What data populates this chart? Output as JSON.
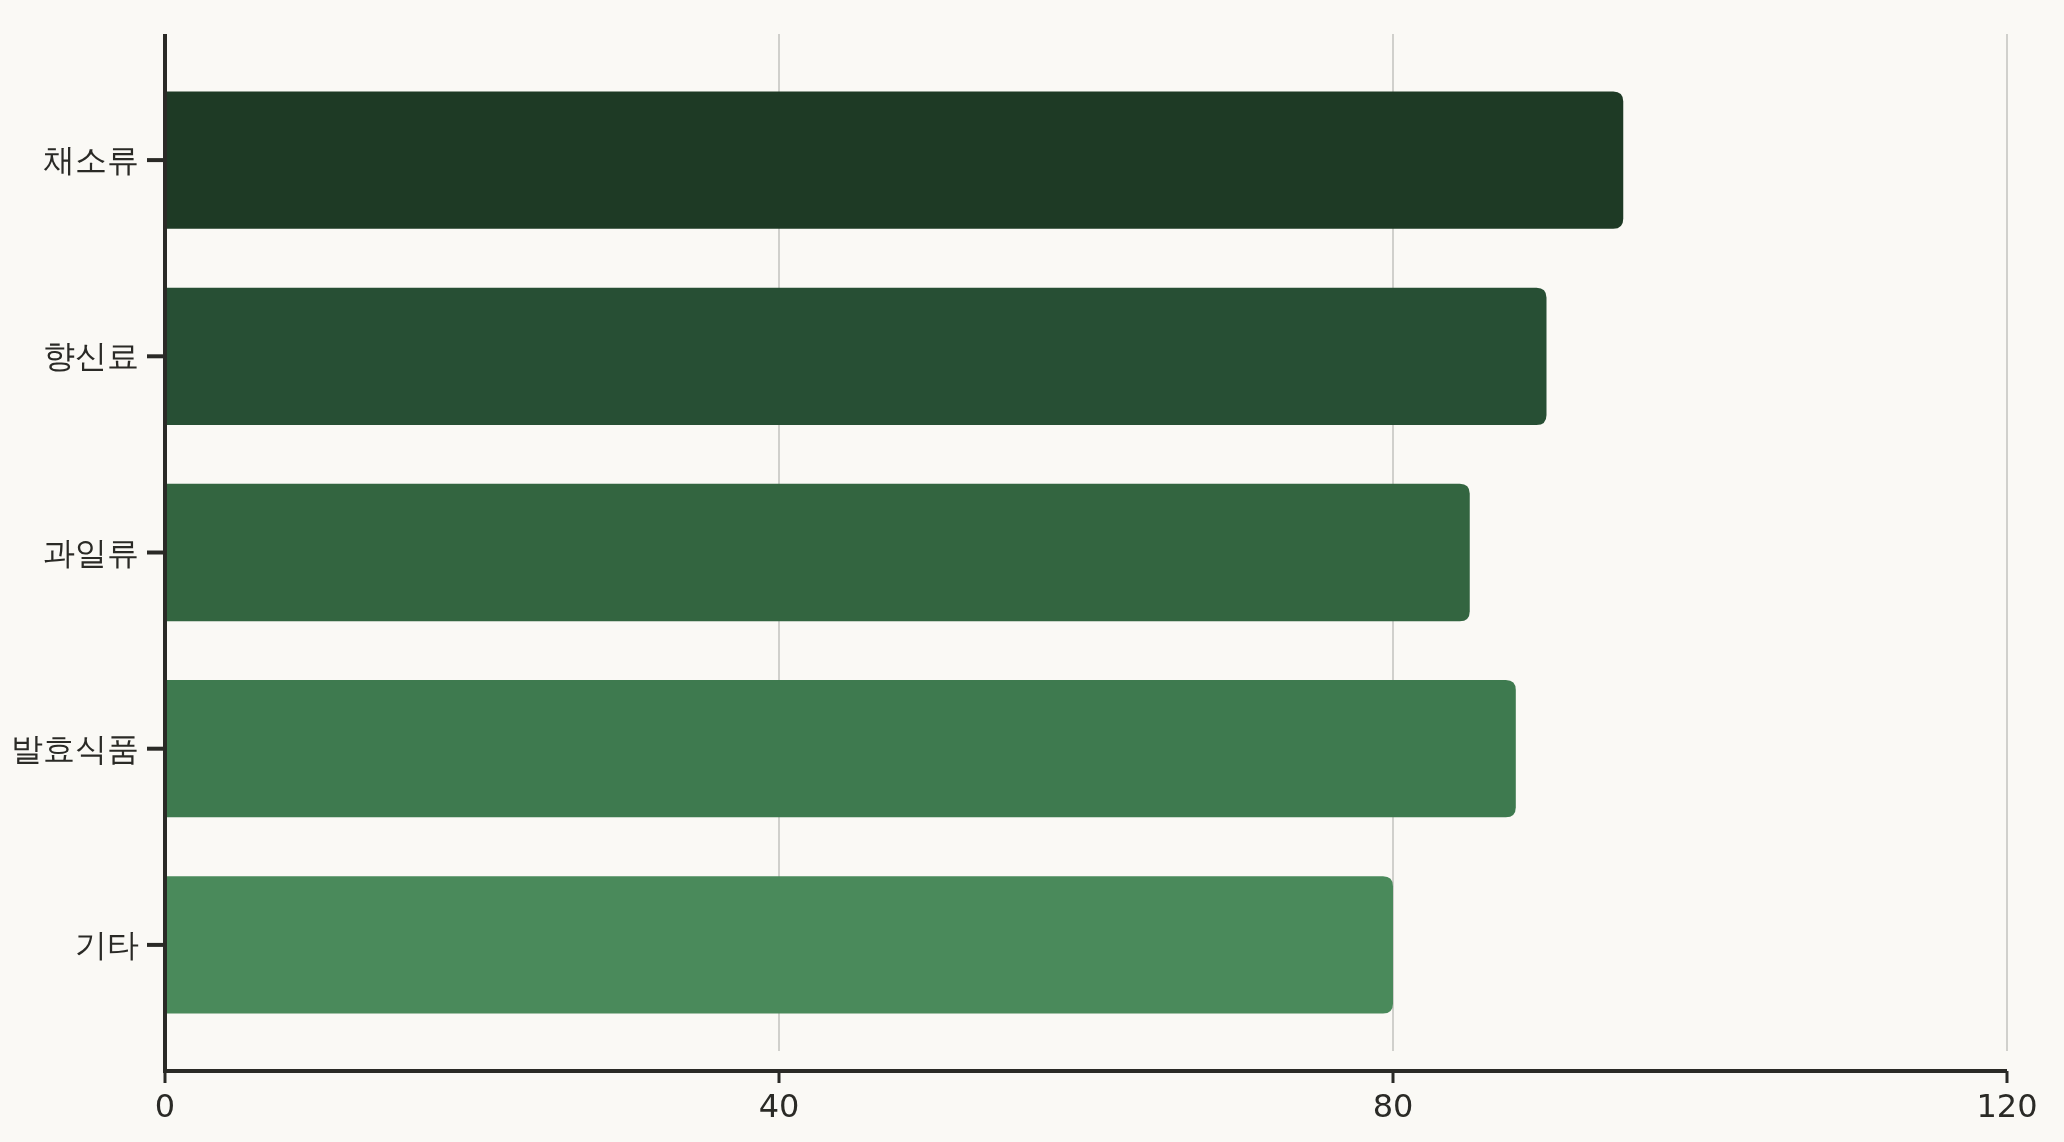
{
  "chart_data": {
    "type": "bar",
    "orientation": "horizontal",
    "categories": [
      "채소류",
      "향신료",
      "과일류",
      "발효식품",
      "기타"
    ],
    "values": [
      95,
      90,
      85,
      88,
      80
    ],
    "colors": [
      "#1e3a25",
      "#274f34",
      "#336540",
      "#3e7a4f",
      "#4a8a5b"
    ],
    "xlim": [
      0,
      120
    ],
    "xticks": [
      0,
      40,
      80,
      120
    ],
    "grid": "x"
  }
}
